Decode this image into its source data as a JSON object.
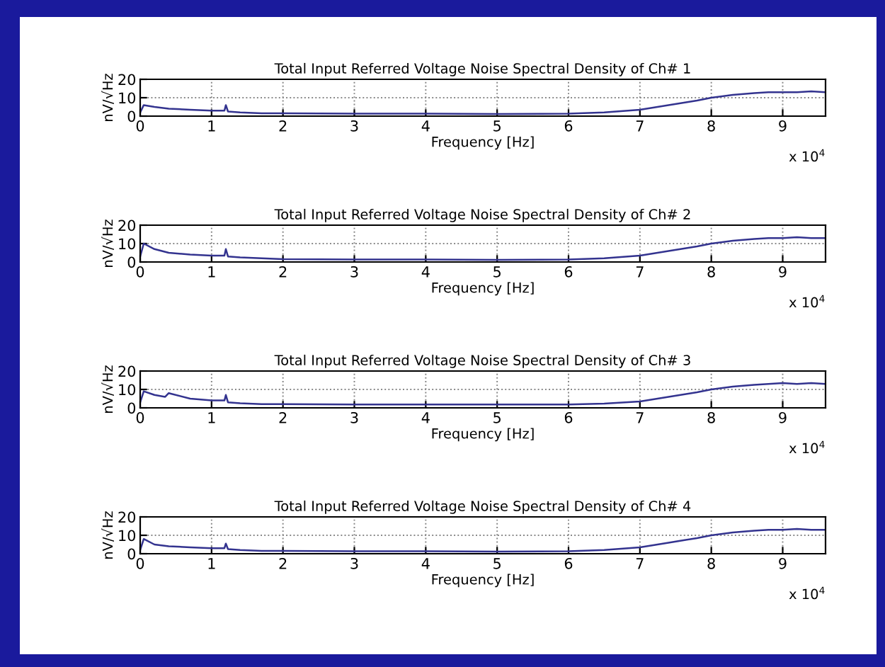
{
  "chart_data": [
    {
      "type": "line",
      "title": "Total Input Referred Voltage Noise Spectral Density of Ch# 1",
      "xlabel": "Frequency [Hz]",
      "ylabel": "nV/√Hz",
      "annotations": [
        "x 10$^{4}$"
      ],
      "grid": true,
      "xlim": [
        0,
        9.6
      ],
      "ylim": [
        0,
        20
      ],
      "yticks": [
        0,
        10,
        20
      ],
      "xticks": [
        0,
        1,
        2,
        3,
        4,
        5,
        6,
        7,
        8,
        9
      ],
      "series": [
        {
          "color": "#33338f",
          "x": [
            0,
            0.05,
            0.2,
            0.4,
            0.7,
            1.0,
            1.18,
            1.2,
            1.23,
            1.4,
            1.7,
            2.0,
            3.0,
            4.0,
            5.0,
            6.0,
            6.5,
            7.0,
            7.4,
            7.8,
            8.0,
            8.3,
            8.6,
            8.8,
            9.0,
            9.2,
            9.4,
            9.6
          ],
          "values": [
            2,
            6,
            5,
            4,
            3.5,
            3,
            3,
            6,
            2.5,
            2,
            1.5,
            1.5,
            1.3,
            1.3,
            1.2,
            1.3,
            2,
            3.5,
            6,
            8.5,
            10,
            11.5,
            12.5,
            13,
            13,
            13,
            13.5,
            13
          ]
        }
      ]
    },
    {
      "type": "line",
      "title": "Total Input Referred Voltage Noise Spectral Density of Ch# 2",
      "xlabel": "Frequency [Hz]",
      "ylabel": "nV/√Hz",
      "annotations": [
        "x 10$^{4}$"
      ],
      "grid": true,
      "xlim": [
        0,
        9.6
      ],
      "ylim": [
        0,
        20
      ],
      "yticks": [
        0,
        10,
        20
      ],
      "xticks": [
        0,
        1,
        2,
        3,
        4,
        5,
        6,
        7,
        8,
        9
      ],
      "series": [
        {
          "color": "#33338f",
          "x": [
            0,
            0.05,
            0.2,
            0.4,
            0.7,
            1.0,
            1.18,
            1.2,
            1.23,
            1.4,
            1.7,
            2.0,
            3.0,
            4.0,
            5.0,
            6.0,
            6.5,
            7.0,
            7.4,
            7.8,
            8.0,
            8.3,
            8.6,
            8.8,
            9.0,
            9.2,
            9.4,
            9.6
          ],
          "values": [
            3,
            10,
            7,
            5,
            4,
            3.5,
            3.5,
            7,
            3,
            2.5,
            2,
            1.5,
            1.3,
            1.3,
            1.2,
            1.3,
            2,
            3.5,
            6,
            8.5,
            10,
            11.5,
            12.5,
            13,
            13,
            13.5,
            13,
            13
          ]
        }
      ]
    },
    {
      "type": "line",
      "title": "Total Input Referred Voltage Noise Spectral Density of Ch# 3",
      "xlabel": "Frequency [Hz]",
      "ylabel": "nV/√Hz",
      "annotations": [
        "x 10$^{4}$"
      ],
      "grid": true,
      "xlim": [
        0,
        9.6
      ],
      "ylim": [
        0,
        20
      ],
      "yticks": [
        0,
        10,
        20
      ],
      "xticks": [
        0,
        1,
        2,
        3,
        4,
        5,
        6,
        7,
        8,
        9
      ],
      "series": [
        {
          "color": "#33338f",
          "x": [
            0,
            0.05,
            0.2,
            0.35,
            0.4,
            0.7,
            1.0,
            1.18,
            1.2,
            1.23,
            1.4,
            1.7,
            2.0,
            3.0,
            4.0,
            5.0,
            6.0,
            6.5,
            7.0,
            7.4,
            7.8,
            8.0,
            8.3,
            8.6,
            8.8,
            9.0,
            9.2,
            9.4,
            9.6
          ],
          "values": [
            3,
            9,
            7,
            6,
            8,
            5,
            4,
            4,
            7,
            3,
            2.5,
            2,
            2,
            1.8,
            1.8,
            1.8,
            1.8,
            2.3,
            3.5,
            6,
            8.5,
            10,
            11.5,
            12.5,
            13,
            13.5,
            13,
            13.5,
            13
          ]
        }
      ]
    },
    {
      "type": "line",
      "title": "Total Input Referred Voltage Noise Spectral Density of Ch# 4",
      "xlabel": "Frequency [Hz]",
      "ylabel": "nV/√Hz",
      "annotations": [
        "x 10$^{4}$"
      ],
      "grid": true,
      "xlim": [
        0,
        9.6
      ],
      "ylim": [
        0,
        20
      ],
      "yticks": [
        0,
        10,
        20
      ],
      "xticks": [
        0,
        1,
        2,
        3,
        4,
        5,
        6,
        7,
        8,
        9
      ],
      "series": [
        {
          "color": "#33338f",
          "x": [
            0,
            0.05,
            0.2,
            0.4,
            0.7,
            1.0,
            1.18,
            1.2,
            1.23,
            1.4,
            1.7,
            2.0,
            3.0,
            4.0,
            5.0,
            6.0,
            6.5,
            7.0,
            7.4,
            7.8,
            8.0,
            8.3,
            8.6,
            8.8,
            9.0,
            9.2,
            9.4,
            9.6
          ],
          "values": [
            2,
            8,
            5,
            4,
            3.5,
            3,
            3,
            5.5,
            2.5,
            2,
            1.5,
            1.5,
            1.3,
            1.3,
            1.2,
            1.3,
            2,
            3.5,
            6,
            8.5,
            10,
            11.5,
            12.5,
            13,
            13,
            13.5,
            13,
            13
          ]
        }
      ]
    }
  ]
}
